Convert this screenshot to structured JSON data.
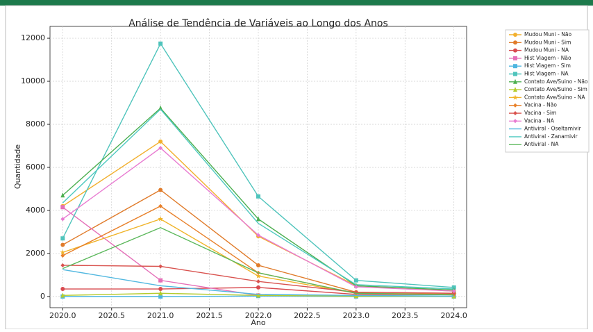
{
  "chart_data": {
    "type": "line",
    "title": "Análise de Tendência de Variáveis ao Longo dos Anos",
    "xlabel": "Ano",
    "ylabel": "Quantidade",
    "x": [
      2020,
      2021,
      2022,
      2023,
      2024
    ],
    "xlim": [
      2019.87,
      2024.13
    ],
    "xticks": [
      {
        "value": 2020,
        "label": "2020.0"
      },
      {
        "value": 2020.5,
        "label": "2020.5"
      },
      {
        "value": 2021,
        "label": "2021.0"
      },
      {
        "value": 2021.5,
        "label": "2021.5"
      },
      {
        "value": 2022,
        "label": "2022.0"
      },
      {
        "value": 2022.5,
        "label": "2022.5"
      },
      {
        "value": 2023,
        "label": "2023.0"
      },
      {
        "value": 2023.5,
        "label": "2023.5"
      },
      {
        "value": 2024,
        "label": "2024.0"
      }
    ],
    "ylim": [
      -520,
      12550
    ],
    "yticks": [
      0,
      2000,
      4000,
      6000,
      8000,
      10000,
      12000
    ],
    "grid": true,
    "legend": "upper right",
    "series": [
      {
        "name": "Mudou Muni - Não",
        "color": "#f2b02e",
        "marker": "o",
        "values": [
          4200,
          7200,
          2800,
          500,
          250
        ]
      },
      {
        "name": "Mudou Muni - Sim",
        "color": "#e07b2a",
        "marker": "o",
        "values": [
          2400,
          4950,
          1450,
          200,
          150
        ]
      },
      {
        "name": "Mudou Muni - NA",
        "color": "#d84a4f",
        "marker": "o",
        "values": [
          350,
          350,
          420,
          100,
          80
        ]
      },
      {
        "name": "Hist Viagem - Não",
        "color": "#e46fb8",
        "marker": "s",
        "values": [
          4150,
          750,
          50,
          20,
          10
        ]
      },
      {
        "name": "Hist Viagem - Sim",
        "color": "#4db6e0",
        "marker": "s",
        "values": [
          0,
          0,
          20,
          0,
          0
        ]
      },
      {
        "name": "Hist Viagem - NA",
        "color": "#4fc4bc",
        "marker": "s",
        "values": [
          2700,
          11750,
          4650,
          750,
          420
        ]
      },
      {
        "name": "Contato Ave/Suino - Não",
        "color": "#4caf50",
        "marker": "^",
        "values": [
          4700,
          8750,
          3600,
          500,
          300
        ]
      },
      {
        "name": "Contato Ave/Suino - Sim",
        "color": "#b5cc2e",
        "marker": "^",
        "values": [
          50,
          150,
          50,
          20,
          10
        ]
      },
      {
        "name": "Contato Ave/Suino - NA",
        "color": "#f0b429",
        "marker": "*",
        "values": [
          2050,
          3600,
          950,
          150,
          100
        ]
      },
      {
        "name": "Vacina - Não",
        "color": "#e8802a",
        "marker": "D",
        "values": [
          1900,
          4200,
          1100,
          150,
          100
        ]
      },
      {
        "name": "Vacina - Sim",
        "color": "#d9534f",
        "marker": "D",
        "values": [
          1450,
          1400,
          700,
          200,
          150
        ]
      },
      {
        "name": "Vacina - NA",
        "color": "#e87bd1",
        "marker": "D",
        "values": [
          3600,
          6900,
          2850,
          450,
          250
        ]
      },
      {
        "name": "Antiviral - Oseltamivir",
        "color": "#52b8e0",
        "marker": null,
        "values": [
          1250,
          500,
          100,
          50,
          20
        ]
      },
      {
        "name": "Antiviral - Zanamivir",
        "color": "#4ec9c0",
        "marker": null,
        "values": [
          4350,
          8700,
          3400,
          550,
          350
        ]
      },
      {
        "name": "Antiviral - NA",
        "color": "#5cb85c",
        "marker": null,
        "values": [
          1300,
          3200,
          1100,
          150,
          80
        ]
      }
    ]
  }
}
